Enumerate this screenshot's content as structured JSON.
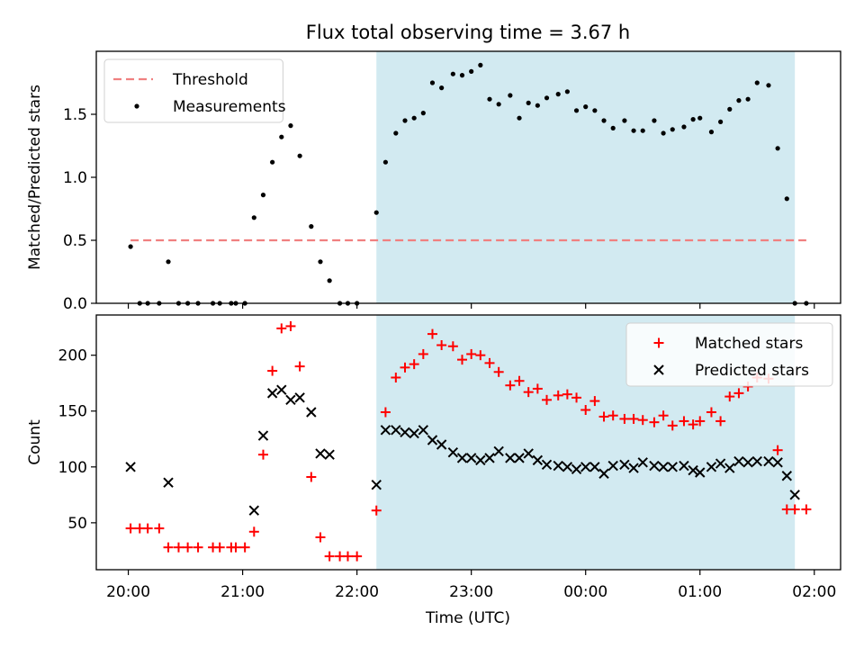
{
  "chart_data": {
    "title": "Flux total observing time = 3.67 h",
    "xlabel": "Time (UTC)",
    "x_unit": "hours since 20:00 UTC",
    "x_ticks": [
      {
        "value": 0,
        "label": "20:00"
      },
      {
        "value": 1,
        "label": "21:00"
      },
      {
        "value": 2,
        "label": "22:00"
      },
      {
        "value": 3,
        "label": "23:00"
      },
      {
        "value": 4,
        "label": "00:00"
      },
      {
        "value": 5,
        "label": "01:00"
      },
      {
        "value": 6,
        "label": "02:00"
      }
    ],
    "xlim": [
      -0.28,
      6.23
    ],
    "observing_window": {
      "start": 2.17,
      "end": 5.83,
      "color": "#add8e6"
    },
    "panels": [
      {
        "type": "scatter",
        "ylabel": "Matched/Predicted stars",
        "ylim": [
          0,
          2.0
        ],
        "y_ticks": [
          {
            "value": 0.0,
            "label": "0.0"
          },
          {
            "value": 0.5,
            "label": "0.5"
          },
          {
            "value": 1.0,
            "label": "1.0"
          },
          {
            "value": 1.5,
            "label": "1.5"
          }
        ],
        "legend_position": "top-left",
        "threshold": {
          "name": "Threshold",
          "value": 0.5,
          "x_range": [
            0.02,
            5.93
          ],
          "color": "#f08080"
        },
        "series": [
          {
            "name": "Measurements",
            "marker": "dot",
            "color": "#000000",
            "x": [
              0.02,
              0.1,
              0.17,
              0.27,
              0.35,
              0.44,
              0.52,
              0.61,
              0.74,
              0.8,
              0.9,
              0.94,
              1.02,
              1.1,
              1.18,
              1.26,
              1.34,
              1.42,
              1.5,
              1.6,
              1.68,
              1.76,
              1.85,
              1.92,
              2.0,
              2.17,
              2.25,
              2.34,
              2.42,
              2.5,
              2.58,
              2.66,
              2.74,
              2.84,
              2.92,
              3.0,
              3.08,
              3.16,
              3.24,
              3.34,
              3.42,
              3.5,
              3.58,
              3.66,
              3.76,
              3.84,
              3.92,
              4.0,
              4.08,
              4.16,
              4.24,
              4.34,
              4.42,
              4.5,
              4.6,
              4.68,
              4.76,
              4.86,
              4.94,
              5.0,
              5.1,
              5.18,
              5.26,
              5.34,
              5.42,
              5.5,
              5.6,
              5.68,
              5.76,
              5.83,
              5.93
            ],
            "y": [
              0.45,
              0.0,
              0.0,
              0.0,
              0.33,
              0.0,
              0.0,
              0.0,
              0.0,
              0.0,
              0.0,
              0.0,
              0.0,
              0.68,
              0.86,
              1.12,
              1.32,
              1.41,
              1.17,
              0.61,
              0.33,
              0.18,
              0.0,
              0.0,
              0.0,
              0.72,
              1.12,
              1.35,
              1.45,
              1.47,
              1.51,
              1.75,
              1.71,
              1.82,
              1.81,
              1.84,
              1.89,
              1.62,
              1.58,
              1.65,
              1.47,
              1.59,
              1.57,
              1.63,
              1.66,
              1.68,
              1.53,
              1.56,
              1.53,
              1.45,
              1.39,
              1.45,
              1.37,
              1.37,
              1.45,
              1.35,
              1.38,
              1.4,
              1.46,
              1.47,
              1.36,
              1.44,
              1.54,
              1.61,
              1.62,
              1.75,
              1.73,
              1.23,
              0.83,
              0.0,
              0.0
            ]
          }
        ]
      },
      {
        "type": "scatter",
        "ylabel": "Count",
        "ylim": [
          8,
          236
        ],
        "y_ticks": [
          {
            "value": 50,
            "label": "50"
          },
          {
            "value": 100,
            "label": "100"
          },
          {
            "value": 150,
            "label": "150"
          },
          {
            "value": 200,
            "label": "200"
          }
        ],
        "legend_position": "top-right",
        "series": [
          {
            "name": "Matched stars",
            "marker": "plus",
            "color": "#ff0000",
            "x": [
              0.02,
              0.1,
              0.17,
              0.27,
              0.35,
              0.44,
              0.52,
              0.61,
              0.74,
              0.8,
              0.9,
              0.94,
              1.02,
              1.1,
              1.18,
              1.26,
              1.34,
              1.42,
              1.5,
              1.6,
              1.68,
              1.76,
              1.85,
              1.92,
              2.0,
              2.17,
              2.25,
              2.34,
              2.42,
              2.5,
              2.58,
              2.66,
              2.74,
              2.84,
              2.92,
              3.0,
              3.08,
              3.16,
              3.24,
              3.34,
              3.42,
              3.5,
              3.58,
              3.66,
              3.76,
              3.84,
              3.92,
              4.0,
              4.08,
              4.16,
              4.24,
              4.34,
              4.42,
              4.5,
              4.6,
              4.68,
              4.76,
              4.86,
              4.94,
              5.0,
              5.1,
              5.18,
              5.26,
              5.34,
              5.42,
              5.5,
              5.6,
              5.68,
              5.76,
              5.83,
              5.93
            ],
            "y": [
              45,
              45,
              45,
              45,
              28,
              28,
              28,
              28,
              28,
              28,
              28,
              28,
              28,
              42,
              111,
              186,
              224,
              226,
              190,
              91,
              37,
              20,
              20,
              20,
              20,
              61,
              149,
              180,
              189,
              192,
              201,
              219,
              209,
              208,
              196,
              201,
              200,
              193,
              185,
              173,
              177,
              167,
              170,
              160,
              164,
              165,
              162,
              151,
              159,
              145,
              146,
              143,
              143,
              142,
              140,
              146,
              137,
              141,
              138,
              141,
              149,
              141,
              163,
              166,
              172,
              180,
              179,
              115,
              62,
              62,
              62
            ],
            "x_overrides": null
          },
          {
            "name": "Predicted stars",
            "marker": "x",
            "color": "#000000",
            "x": [
              0.02,
              0.35,
              1.1,
              1.18,
              1.26,
              1.34,
              1.42,
              1.5,
              1.6,
              1.68,
              1.76,
              2.17,
              2.25,
              2.34,
              2.42,
              2.5,
              2.58,
              2.66,
              2.74,
              2.84,
              2.92,
              3.0,
              3.08,
              3.16,
              3.24,
              3.34,
              3.42,
              3.5,
              3.58,
              3.66,
              3.76,
              3.84,
              3.92,
              4.0,
              4.08,
              4.16,
              4.24,
              4.34,
              4.42,
              4.5,
              4.6,
              4.68,
              4.76,
              4.86,
              4.94,
              5.0,
              5.1,
              5.18,
              5.26,
              5.34,
              5.42,
              5.5,
              5.6,
              5.68,
              5.76,
              5.83
            ],
            "y": [
              100,
              86,
              61,
              128,
              166,
              169,
              160,
              162,
              149,
              112,
              111,
              84,
              133,
              133,
              131,
              130,
              133,
              124,
              120,
              113,
              108,
              108,
              106,
              108,
              114,
              108,
              108,
              112,
              106,
              102,
              101,
              100,
              98,
              100,
              100,
              94,
              101,
              102,
              99,
              104,
              101,
              100,
              100,
              101,
              97,
              95,
              100,
              103,
              99,
              105,
              104,
              105,
              105,
              104,
              92,
              75
            ]
          }
        ]
      }
    ]
  }
}
